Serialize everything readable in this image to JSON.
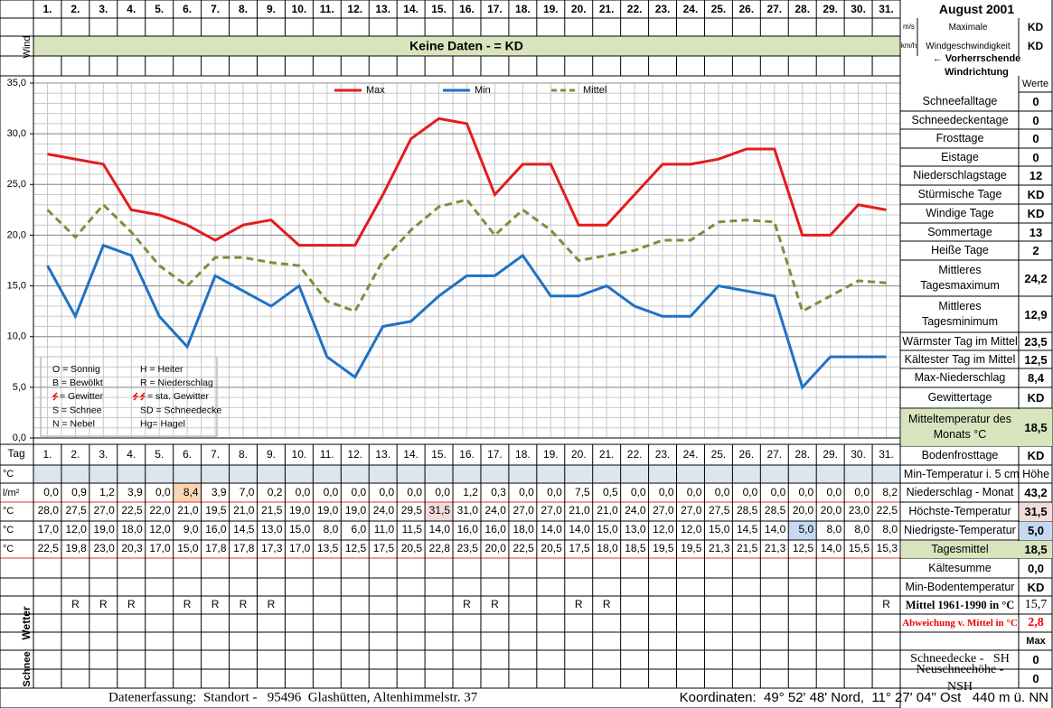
{
  "header": {
    "title": "August 2001",
    "wind_label": "Wind",
    "no_data": "Keine Daten -  = KD",
    "day_label": "Tag"
  },
  "wind_panel": {
    "units": [
      "m/s",
      "km/h"
    ],
    "label_lines": [
      "Maximale",
      "Windgeschwindigkeit"
    ],
    "values": [
      "KD",
      "KD"
    ],
    "direction": "← Vorherrschende Windrichtung"
  },
  "chart_data": {
    "type": "line",
    "categories": [
      "1.",
      "2.",
      "3.",
      "4.",
      "5.",
      "6.",
      "7.",
      "8.",
      "9.",
      "10.",
      "11.",
      "12.",
      "13.",
      "14.",
      "15.",
      "16.",
      "17.",
      "18.",
      "19.",
      "20.",
      "21.",
      "22.",
      "23.",
      "24.",
      "25.",
      "26.",
      "27.",
      "28.",
      "29.",
      "30.",
      "31."
    ],
    "series": [
      {
        "name": "Max",
        "color": "#e41c1c",
        "dashed": false,
        "values": [
          28,
          27.5,
          27,
          22.5,
          22,
          21,
          19.5,
          21,
          21.5,
          19,
          19,
          19,
          24,
          29.5,
          31.5,
          31,
          24,
          27,
          27,
          21,
          21,
          24,
          27,
          27,
          27.5,
          28.5,
          28.5,
          20,
          20,
          23,
          22.5
        ],
        "value_labels": [
          "28,0",
          "27,5",
          "27,0",
          "22,5",
          "22,0",
          "21,0",
          "19,5",
          "21,0",
          "21,5",
          "19,0",
          "19,0",
          "19,0",
          "24,0",
          "29,5",
          "31,5",
          "31,0",
          "24,0",
          "27,0",
          "27,0",
          "21,0",
          "21,0",
          "24,0",
          "27,0",
          "27,0",
          "27,5",
          "28,5",
          "28,5",
          "20,0",
          "20,0",
          "23,0",
          "22,5"
        ]
      },
      {
        "name": "Min",
        "color": "#1f72c4",
        "dashed": false,
        "values": [
          17,
          12,
          19,
          18,
          12,
          9,
          16,
          14.5,
          13,
          15,
          8,
          6,
          11,
          11.5,
          14,
          16,
          16,
          18,
          14,
          14,
          15,
          13,
          12,
          12,
          15,
          14.5,
          14,
          5,
          8,
          8,
          8
        ],
        "value_labels": [
          "17,0",
          "12,0",
          "19,0",
          "18,0",
          "12,0",
          "9,0",
          "16,0",
          "14,5",
          "13,0",
          "15,0",
          "8,0",
          "6,0",
          "11,0",
          "11,5",
          "14,0",
          "16,0",
          "16,0",
          "18,0",
          "14,0",
          "14,0",
          "15,0",
          "13,0",
          "12,0",
          "12,0",
          "15,0",
          "14,5",
          "14,0",
          "5,0",
          "8,0",
          "8,0",
          "8,0"
        ]
      },
      {
        "name": "Mittel",
        "color": "#76923c",
        "dashed": true,
        "values": [
          22.5,
          19.8,
          23,
          20.3,
          17,
          15,
          17.8,
          17.8,
          17.3,
          17,
          13.5,
          12.5,
          17.5,
          20.5,
          22.8,
          23.5,
          20,
          22.5,
          20.5,
          17.5,
          18,
          18.5,
          19.5,
          19.5,
          21.3,
          21.5,
          21.3,
          12.5,
          14,
          15.5,
          15.3
        ],
        "value_labels": [
          "22,5",
          "19,8",
          "23,0",
          "20,3",
          "17,0",
          "15,0",
          "17,8",
          "17,8",
          "17,3",
          "17,0",
          "13,5",
          "12,5",
          "17,5",
          "20,5",
          "22,8",
          "23,5",
          "20,0",
          "22,5",
          "20,5",
          "17,5",
          "18,0",
          "18,5",
          "19,5",
          "19,5",
          "21,3",
          "21,5",
          "21,3",
          "12,5",
          "14,0",
          "15,5",
          "15,3"
        ]
      }
    ],
    "ylim": [
      0,
      35
    ],
    "yticks": [
      {
        "value": 0,
        "label": "0,0"
      },
      {
        "value": 5,
        "label": "5,0"
      },
      {
        "value": 10,
        "label": "10,0"
      },
      {
        "value": 15,
        "label": "15,0"
      },
      {
        "value": 20,
        "label": "20,0"
      },
      {
        "value": 25,
        "label": "25,0"
      },
      {
        "value": 30,
        "label": "30,0"
      },
      {
        "value": 35,
        "label": "35,0"
      }
    ],
    "grid": true,
    "legend": "top"
  },
  "weather_legend": [
    "O = Sonnig",
    "H = Heiter",
    "B = Bewölkt",
    "R = Niederschlag",
    "= Gewitter",
    "= sta. Gewitter",
    "S = Schnee",
    "SD = Schneedecke",
    "N = Nebel",
    "Hg= Hagel"
  ],
  "table": {
    "unit_labels": [
      "°C",
      "l/m²",
      "°C",
      "°C",
      "°C"
    ],
    "precipitation": [
      "0,0",
      "0,9",
      "1,2",
      "3,9",
      "0,0",
      "8,4",
      "3,9",
      "7,0",
      "0,2",
      "0,0",
      "0,0",
      "0,0",
      "0,0",
      "0,0",
      "0,0",
      "1,2",
      "0,3",
      "0,0",
      "0,0",
      "7,5",
      "0,5",
      "0,0",
      "0,0",
      "0,0",
      "0,0",
      "0,0",
      "0,0",
      "0,0",
      "0,0",
      "0,0",
      "8,2"
    ],
    "weather": [
      null,
      "R",
      "R",
      "R",
      null,
      "R",
      "R",
      "R",
      "R",
      null,
      null,
      null,
      null,
      null,
      null,
      "R",
      "R",
      null,
      null,
      "R",
      "R",
      null,
      null,
      null,
      null,
      null,
      null,
      null,
      null,
      null,
      "R"
    ],
    "weather_label": "Wetter",
    "snow_label": "Schnee"
  },
  "stats": {
    "header": "Werte",
    "rows": [
      {
        "label": "Schneefalltage",
        "value": "0"
      },
      {
        "label": "Schneedeckentage",
        "value": "0"
      },
      {
        "label": "Frosttage",
        "value": "0"
      },
      {
        "label": "Eistage",
        "value": "0"
      },
      {
        "label": "Niederschlagstage",
        "value": "12"
      },
      {
        "label": "Stürmische Tage",
        "value": "KD"
      },
      {
        "label": "Windige Tage",
        "value": "KD"
      },
      {
        "label": "Sommertage",
        "value": "13"
      },
      {
        "label": "Heiße Tage",
        "value": "2"
      },
      {
        "label": "Mittleres Tagesmaximum",
        "value": "24,2"
      },
      {
        "label": "Mittleres Tagesminimum",
        "value": "12,9"
      },
      {
        "label": "Wärmster Tag im Mittel",
        "value": "23,5"
      },
      {
        "label": "Kältester Tag im Mittel",
        "value": "12,5"
      },
      {
        "label": "Max-Niederschlag",
        "value": "8,4"
      },
      {
        "label": "Gewittertage",
        "value": "KD"
      },
      {
        "label": "Mitteltemperatur des Monats °C",
        "value": "18,5"
      },
      {
        "label": "Bodenfrosttage",
        "value": "KD"
      },
      {
        "label": "Min-Temperatur i. 5 cm Höhe"
      },
      {
        "label": "Niederschlag - Monat",
        "value": "43,2"
      },
      {
        "label": "Höchste-Temperatur",
        "value": "31,5"
      },
      {
        "label": "Niedrigste-Temperatur",
        "value": "5,0"
      },
      {
        "label": "Tagesmittel",
        "value": "18,5"
      },
      {
        "label": "Kältesumme",
        "value": "0,0"
      },
      {
        "label": "Min-Bodentemperatur",
        "value": "KD"
      },
      {
        "label": "Mittel 1961-1990 in °C",
        "value": "15,7"
      },
      {
        "label": "Abweichung v. Mittel in °C",
        "value": "2,8"
      },
      {
        "value": "Max"
      },
      {
        "label": "Schneedecke -   SH",
        "value": "0"
      },
      {
        "label": "Neuschneehöhe - NSH",
        "value": "0"
      }
    ]
  },
  "footer": {
    "left": "Datenerfassung:  Standort -   95496  Glashütten, Altenhimmelstr. 37",
    "right": "Koordinaten:  49° 52' 48' Nord,  11° 27' 04\" Ost   440 m ü. NN"
  }
}
